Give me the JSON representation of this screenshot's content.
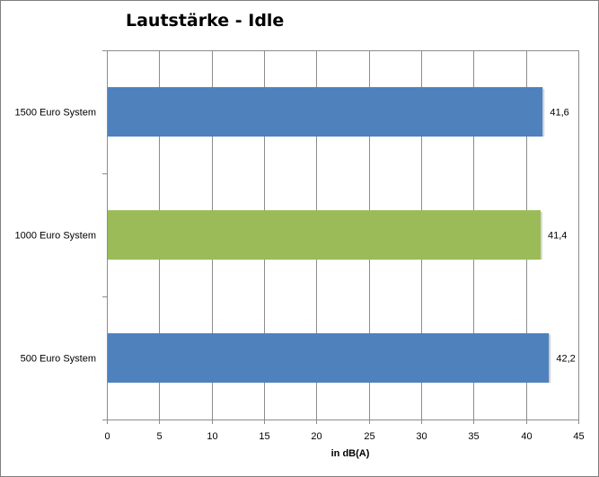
{
  "chart_data": {
    "type": "bar",
    "orientation": "horizontal",
    "title": "Lautstärke - Idle",
    "xlabel": "in dB(A)",
    "ylabel": "",
    "categories": [
      "1500 Euro System",
      "1000 Euro System",
      "500 Euro System"
    ],
    "values": [
      41.6,
      41.4,
      42.2
    ],
    "value_labels": [
      "41,6",
      "41,4",
      "42,2"
    ],
    "bar_colors": [
      "#4f81bd",
      "#9bbb59",
      "#4f81bd"
    ],
    "xlim": [
      0,
      45
    ],
    "xticks": [
      0,
      5,
      10,
      15,
      20,
      25,
      30,
      35,
      40,
      45
    ],
    "grid": true,
    "legend": "none"
  }
}
